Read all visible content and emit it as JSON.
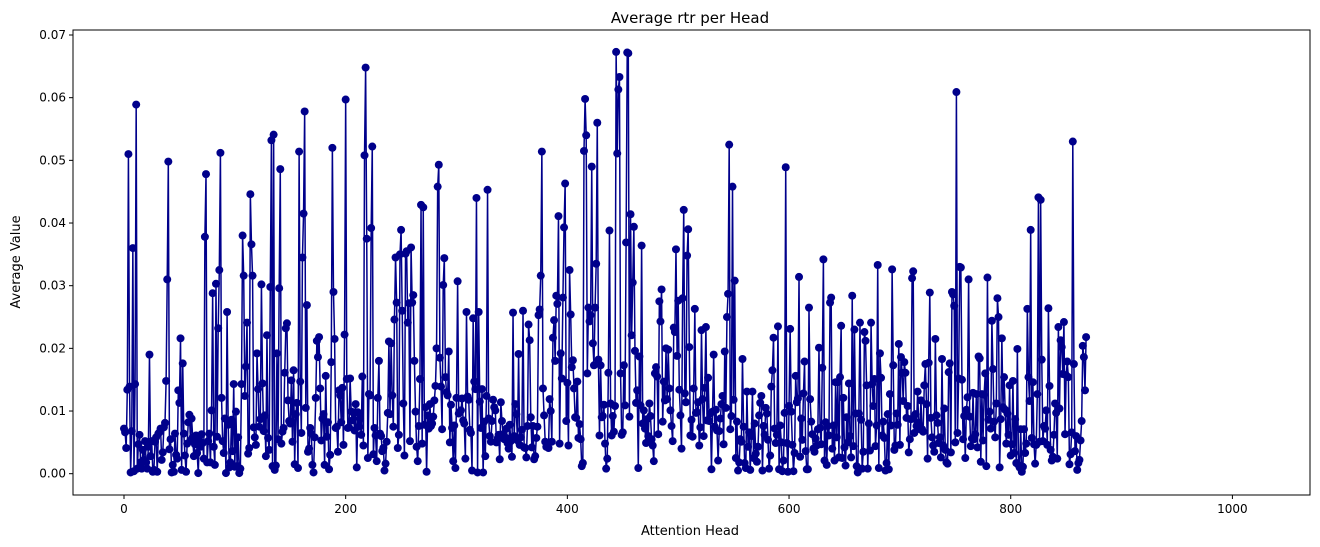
{
  "chart_data": {
    "type": "line",
    "title": "Average rtr per Head",
    "xlabel": "Attention Head",
    "ylabel": "Average Value",
    "xlim": [
      -46,
      1070
    ],
    "ylim": [
      -0.0034,
      0.0708
    ],
    "x_ticks": [
      0,
      200,
      400,
      600,
      800,
      1000
    ],
    "x_tick_labels": [
      "0",
      "200",
      "400",
      "600",
      "800",
      "1000"
    ],
    "y_ticks": [
      0.0,
      0.01,
      0.02,
      0.03,
      0.04,
      0.05,
      0.06,
      0.07
    ],
    "y_tick_labels": [
      "0.00",
      "0.01",
      "0.02",
      "0.03",
      "0.04",
      "0.05",
      "0.06",
      "0.07"
    ],
    "grid": false,
    "marker": "circle",
    "color": "#00008b",
    "series": [
      {
        "x_start": 0,
        "x_step": 1,
        "values": [
          0.0072,
          0.0066,
          0.0041,
          0.0134,
          0.051,
          0.0139,
          0.0002,
          0.0068,
          0.036,
          0.0004,
          0.0143,
          0.0589,
          0.0008,
          0.0047,
          0.0062,
          0.0018,
          0.0008,
          0.0038,
          0.0022,
          0.0052,
          0.0018,
          0.0008,
          0.0043,
          0.019,
          0.0028,
          0.0052,
          0.0003,
          0.0006,
          0.0051,
          0.0058,
          0.0003,
          0.0064,
          0.0066,
          0.0072,
          0.0022,
          0.0034,
          0.0074,
          0.0081,
          0.0148,
          0.031,
          0.0498,
          0.0039,
          0.0055,
          0.0002,
          0.0014,
          0.0003,
          0.0064,
          0.003,
          0.0024,
          0.0133,
          0.0113,
          0.0216,
          0.0006,
          0.0176,
          0.0064,
          0.0029,
          0.0003,
          0.0048,
          0.0082,
          0.0094,
          0.0053,
          0.0088,
          0.0058,
          0.0028,
          0.0047,
          0.0061,
          0.0033,
          0.0001,
          0.0052,
          0.0043,
          0.0063,
          0.0049,
          0.0024,
          0.0378,
          0.0478,
          0.0018,
          0.0052,
          0.0064,
          0.0018,
          0.0101,
          0.0288,
          0.0043,
          0.0014,
          0.0303,
          0.0059,
          0.0232,
          0.0325,
          0.0512,
          0.0121,
          0.0052,
          0.0033,
          0.0088,
          0.0001,
          0.0258,
          0.0078,
          0.001,
          0.0018,
          0.0086,
          0.0036,
          0.0143,
          0.0011,
          0.0099,
          0.0012,
          0.0058,
          0.0001,
          0.0008,
          0.0143,
          0.038,
          0.0316,
          0.0124,
          0.0171,
          0.0241,
          0.0032,
          0.0041,
          0.0446,
          0.0366,
          0.0316,
          0.0074,
          0.0058,
          0.0046,
          0.0192,
          0.0135,
          0.0075,
          0.0087,
          0.0302,
          0.0144,
          0.0068,
          0.0093,
          0.0028,
          0.0221,
          0.0057,
          0.0038,
          0.0298,
          0.0532,
          0.0012,
          0.0541,
          0.0006,
          0.0013,
          0.0192,
          0.0055,
          0.0296,
          0.0486,
          0.0048,
          0.0067,
          0.0073,
          0.0161,
          0.0232,
          0.024,
          0.0117,
          0.0084,
          0.008,
          0.0149,
          0.0051,
          0.0165,
          0.0015,
          0.0095,
          0.0113,
          0.0009,
          0.0514,
          0.0147,
          0.0065,
          0.0345,
          0.0415,
          0.0578,
          0.0105,
          0.0269,
          0.0035,
          0.004,
          0.0073,
          0.0064,
          0.0014,
          0.0002,
          0.0058,
          0.0121,
          0.0212,
          0.0186,
          0.0218,
          0.0136,
          0.0053,
          0.0088,
          0.0095,
          0.0014,
          0.0156,
          0.0059,
          0.0082,
          0.0007,
          0.003,
          0.0178,
          0.052,
          0.029,
          0.0215,
          0.0073,
          0.0075,
          0.0035,
          0.0133,
          0.0125,
          0.0082,
          0.0137,
          0.0046,
          0.0222,
          0.0597,
          0.0151,
          0.0073,
          0.0074,
          0.0152,
          0.0099,
          0.0085,
          0.0098,
          0.0069,
          0.0111,
          0.001,
          0.0098,
          0.0075,
          0.0088,
          0.0062,
          0.0155,
          0.0045,
          0.0508,
          0.0648,
          0.0375,
          0.0025,
          0.0127,
          0.0125,
          0.0392,
          0.0522,
          0.0031,
          0.0073,
          0.0061,
          0.002,
          0.0121,
          0.018,
          0.0064,
          0.006,
          0.0036,
          0.0041,
          0.0005,
          0.0016,
          0.0051,
          0.0097,
          0.0211,
          0.0095,
          0.0208,
          0.0125,
          0.0075,
          0.0246,
          0.0345,
          0.0273,
          0.0041,
          0.0062,
          0.035,
          0.0389,
          0.026,
          0.0112,
          0.0029,
          0.0351,
          0.0355,
          0.0241,
          0.0272,
          0.0052,
          0.0361,
          0.0273,
          0.0285,
          0.018,
          0.0099,
          0.0043,
          0.002,
          0.0076,
          0.0151,
          0.0429,
          0.0048,
          0.0425,
          0.0078,
          0.0106,
          0.0003,
          0.0093,
          0.0072,
          0.0111,
          0.0076,
          0.008,
          0.0091,
          0.0117,
          0.014,
          0.02,
          0.0458,
          0.0493,
          0.0185,
          0.0139,
          0.0071,
          0.0301,
          0.0344,
          0.0154,
          0.013,
          0.0125,
          0.0195,
          0.005,
          0.011,
          0.0073,
          0.002,
          0.0077,
          0.0009,
          0.0121,
          0.0307,
          0.0096,
          0.0098,
          0.0101,
          0.012,
          0.0085,
          0.008,
          0.0024,
          0.0258,
          0.0123,
          0.0118,
          0.007,
          0.0065,
          0.0005,
          0.0248,
          0.0147,
          0.0135,
          0.044,
          0.0002,
          0.0258,
          0.0115,
          0.0073,
          0.0135,
          0.0002,
          0.0083,
          0.0028,
          0.0124,
          0.0453,
          0.0088,
          0.006,
          0.0051,
          0.0084,
          0.0118,
          0.0106,
          0.0101,
          0.005,
          0.0056,
          0.0062,
          0.0023,
          0.0114,
          0.0084,
          0.0063,
          0.0055,
          0.0058,
          0.0072,
          0.0049,
          0.004,
          0.0078,
          0.0052,
          0.0027,
          0.0257,
          0.006,
          0.0111,
          0.0095,
          0.0053,
          0.0191,
          0.0046,
          0.0058,
          0.007,
          0.026,
          0.0042,
          0.0041,
          0.0026,
          0.0076,
          0.0238,
          0.0213,
          0.009,
          0.0042,
          0.0076,
          0.0023,
          0.0028,
          0.0057,
          0.0075,
          0.0253,
          0.0262,
          0.0316,
          0.0514,
          0.0136,
          0.0093,
          0.0051,
          0.0043,
          0.0045,
          0.0041,
          0.0119,
          0.01,
          0.0051,
          0.0217,
          0.0245,
          0.018,
          0.0284,
          0.0271,
          0.0411,
          0.0048,
          0.0192,
          0.0152,
          0.0281,
          0.0393,
          0.0463,
          0.0084,
          0.0145,
          0.0045,
          0.0325,
          0.0254,
          0.017,
          0.0181,
          0.0136,
          0.009,
          0.0089,
          0.0147,
          0.0057,
          0.0079,
          0.0055,
          0.0012,
          0.0017,
          0.0515,
          0.0598,
          0.054,
          0.016,
          0.0265,
          0.0243,
          0.0253,
          0.049,
          0.0208,
          0.0173,
          0.0265,
          0.0335,
          0.056,
          0.0182,
          0.0061,
          0.0173,
          0.009,
          0.0092,
          0.011,
          0.0048,
          0.0008,
          0.0024,
          0.0161,
          0.0388,
          0.0112,
          0.0061,
          0.0092,
          0.0067,
          0.0108,
          0.0673,
          0.0511,
          0.0613,
          0.0633,
          0.016,
          0.0062,
          0.0066,
          0.0173,
          0.0109,
          0.0369,
          0.0672,
          0.0671,
          0.0091,
          0.0414,
          0.0221,
          0.0305,
          0.0394,
          0.0196,
          0.0113,
          0.0133,
          0.0009,
          0.0187,
          0.0109,
          0.0364,
          0.008,
          0.0101,
          0.0072,
          0.0049,
          0.0087,
          0.006,
          0.0112,
          0.0092,
          0.0055,
          0.0045,
          0.002,
          0.016,
          0.017,
          0.0155,
          0.0063,
          0.0275,
          0.0243,
          0.0294,
          0.0083,
          0.0147,
          0.0117,
          0.02,
          0.0119,
          0.0198,
          0.0136,
          0.0101,
          0.0076,
          0.0052,
          0.0233,
          0.0226,
          0.0358,
          0.0188,
          0.0276,
          0.0134,
          0.0093,
          0.004,
          0.028,
          0.0421,
          0.0128,
          0.0114,
          0.0348,
          0.039,
          0.0202,
          0.0061,
          0.0086,
          0.0059,
          0.0136,
          0.0263,
          0.0097,
          0.0098,
          0.0114,
          0.0045,
          0.0074,
          0.0229,
          0.0119,
          0.006,
          0.0137,
          0.0234,
          0.0085,
          0.0153,
          0.0084,
          0.0096,
          0.0007,
          0.0099,
          0.019,
          0.0075,
          0.0102,
          0.0069,
          0.0021,
          0.0068,
          0.0088,
          0.0111,
          0.0124,
          0.0047,
          0.0195,
          0.0105,
          0.025,
          0.0287,
          0.0525,
          0.0071,
          0.0092,
          0.0458,
          0.0118,
          0.0308,
          0.0025,
          0.0083,
          0.0005,
          0.0018,
          0.0055,
          0.0051,
          0.0183,
          0.0075,
          0.0017,
          0.0009,
          0.0131,
          0.0043,
          0.0066,
          0.0006,
          0.006,
          0.0131,
          0.0025,
          0.008,
          0.0032,
          0.0019,
          0.0043,
          0.0093,
          0.0113,
          0.0124,
          0.0005,
          0.0076,
          0.0062,
          0.0105,
          0.0096,
          0.0054,
          0.0008,
          0.0029,
          0.0139,
          0.0165,
          0.0217,
          0.0072,
          0.0049,
          0.0062,
          0.0235,
          0.0007,
          0.0077,
          0.005,
          0.0004,
          0.0021,
          0.0097,
          0.0489,
          0.0049,
          0.0003,
          0.0108,
          0.0231,
          0.0099,
          0.0046,
          0.0004,
          0.0033,
          0.0156,
          0.0114,
          0.012,
          0.0314,
          0.0027,
          0.0088,
          0.0054,
          0.0128,
          0.0179,
          0.0036,
          0.0007,
          0.0007,
          0.0265,
          0.0119,
          0.0083,
          0.0063,
          0.004,
          0.0035,
          0.0056,
          0.0045,
          0.0071,
          0.0201,
          0.0073,
          0.0047,
          0.0169,
          0.0342,
          0.0021,
          0.0082,
          0.0014,
          0.0076,
          0.0061,
          0.0273,
          0.0281,
          0.004,
          0.0077,
          0.0021,
          0.0146,
          0.0058,
          0.0146,
          0.0026,
          0.0154,
          0.0236,
          0.0025,
          0.0121,
          0.0042,
          0.0013,
          0.009,
          0.005,
          0.0144,
          0.006,
          0.0026,
          0.0284,
          0.0044,
          0.023,
          0.0096,
          0.0012,
          0.0002,
          0.0096,
          0.0241,
          0.0086,
          0.0008,
          0.0035,
          0.0226,
          0.0212,
          0.0141,
          0.0008,
          0.008,
          0.0037,
          0.0241,
          0.0143,
          0.0108,
          0.0151,
          0.0044,
          0.0077,
          0.0333,
          0.0009,
          0.0192,
          0.0153,
          0.0061,
          0.0083,
          0.0057,
          0.0005,
          0.0017,
          0.0095,
          0.0007,
          0.0127,
          0.0077,
          0.0326,
          0.0173,
          0.0038,
          0.0045,
          0.0096,
          0.0078,
          0.0207,
          0.0046,
          0.0186,
          0.0161,
          0.0116,
          0.0178,
          0.0161,
          0.0089,
          0.0108,
          0.0034,
          0.0055,
          0.0087,
          0.0312,
          0.0323,
          0.0065,
          0.0095,
          0.0076,
          0.0131,
          0.0081,
          0.0071,
          0.0117,
          0.0071,
          0.0067,
          0.0141,
          0.0175,
          0.0111,
          0.0024,
          0.0177,
          0.0289,
          0.0089,
          0.0058,
          0.0045,
          0.0035,
          0.0215,
          0.0093,
          0.0081,
          0.0049,
          0.0058,
          0.0026,
          0.0183,
          0.0045,
          0.0104,
          0.0038,
          0.0018,
          0.0016,
          0.0162,
          0.0176,
          0.0034,
          0.029,
          0.0286,
          0.0268,
          0.005,
          0.0609,
          0.0065,
          0.0152,
          0.033,
          0.0329,
          0.015,
          0.0055,
          0.0092,
          0.0025,
          0.0102,
          0.0122,
          0.031,
          0.0091,
          0.0044,
          0.0056,
          0.0129,
          0.0055,
          0.0063,
          0.0127,
          0.0042,
          0.0187,
          0.0184,
          0.0019,
          0.0127,
          0.0053,
          0.0126,
          0.016,
          0.0012,
          0.0313,
          0.0086,
          0.0099,
          0.0072,
          0.0244,
          0.0167,
          0.0083,
          0.0058,
          0.0112,
          0.028,
          0.025,
          0.001,
          0.0087,
          0.0216,
          0.0106,
          0.0154,
          0.0102,
          0.0048,
          0.0096,
          0.0062,
          0.0141,
          0.0029,
          0.0047,
          0.0148,
          0.0033,
          0.0087,
          0.0017,
          0.0199,
          0.0014,
          0.001,
          0.0071,
          0.0003,
          0.0011,
          0.0071,
          0.0033,
          0.0048,
          0.0263,
          0.0154,
          0.0116,
          0.0389,
          0.0057,
          0.0146,
          0.0047,
          0.0016,
          0.0046,
          0.0127,
          0.0441,
          0.0051,
          0.0437,
          0.0182,
          0.0052,
          0.0076,
          0.0072,
          0.0101,
          0.0046,
          0.0264,
          0.014,
          0.0038,
          0.0021,
          0.0027,
          0.0062,
          0.0112,
          0.0097,
          0.0024,
          0.0234,
          0.0104,
          0.0213,
          0.0202,
          0.0159,
          0.0242,
          0.0063,
          0.0157,
          0.0179,
          0.0154,
          0.0015,
          0.0031,
          0.0066,
          0.053,
          0.0175,
          0.0036,
          0.006,
          0.0006,
          0.0017,
          0.0022,
          0.0053,
          0.0084,
          0.0204,
          0.0186,
          0.0133,
          0.0218
        ]
      }
    ]
  }
}
